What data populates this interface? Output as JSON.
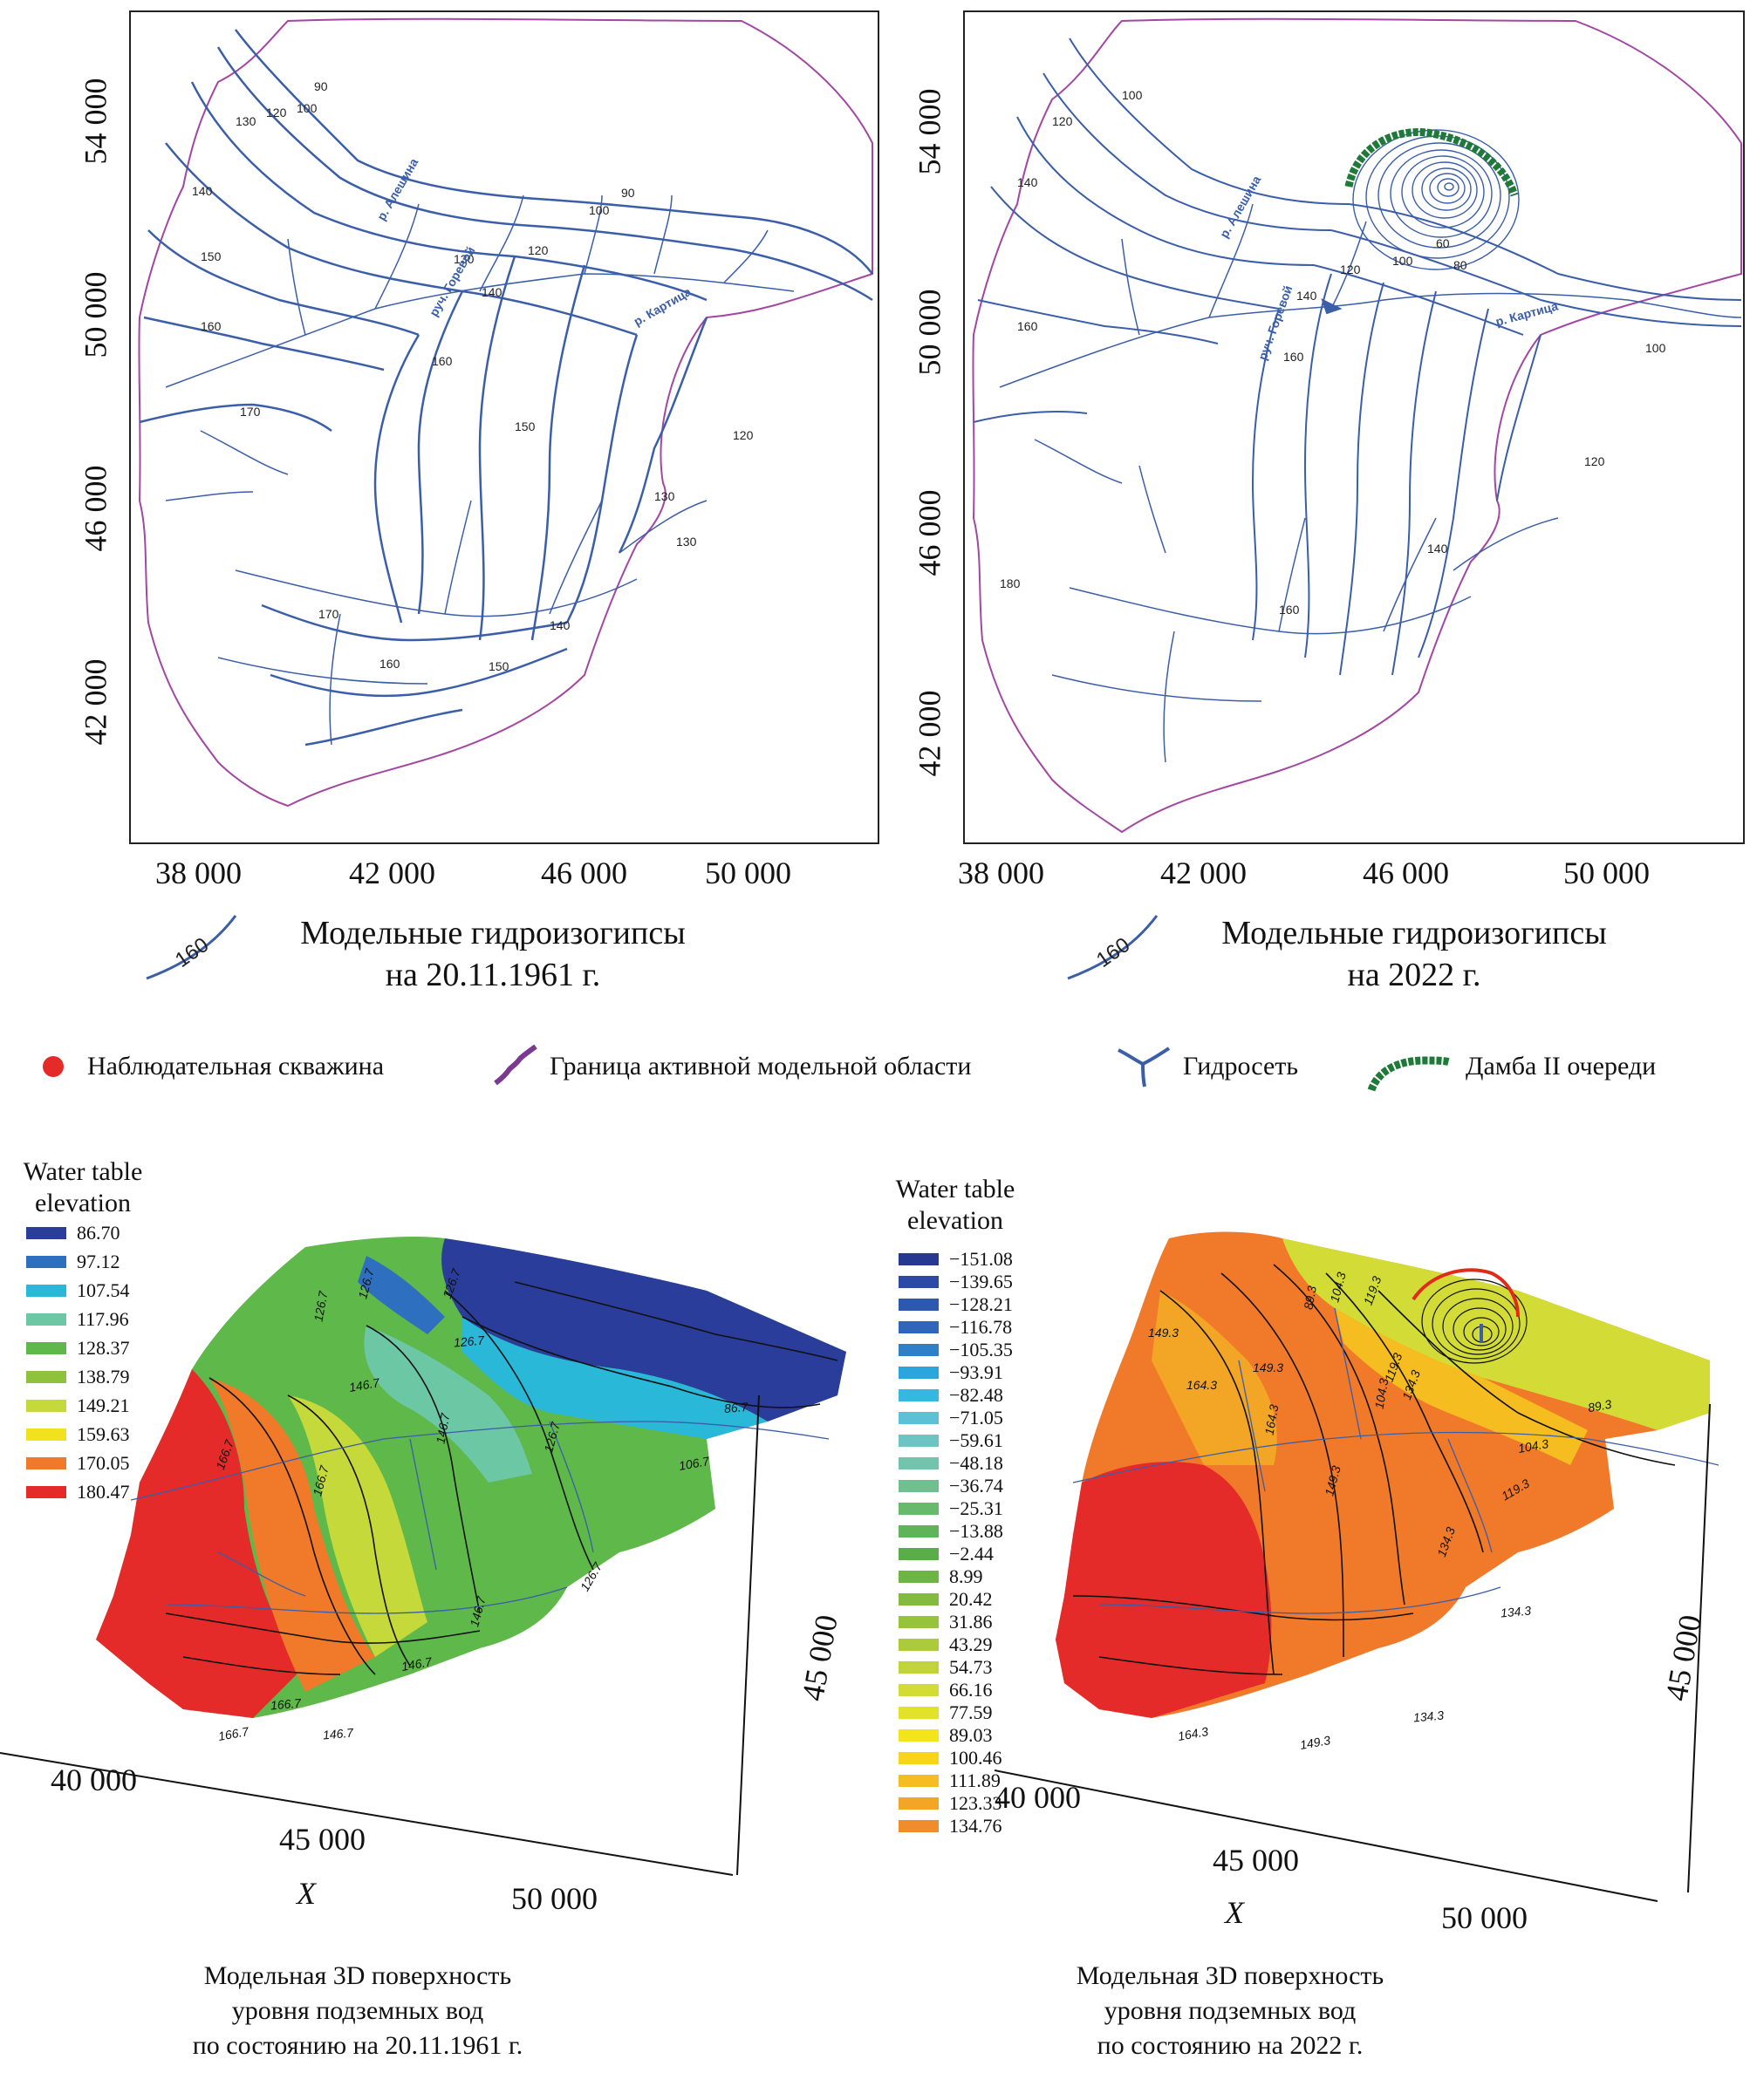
{
  "top_left_map": {
    "y_ticks": [
      "54 000",
      "50 000",
      "46 000",
      "42 000"
    ],
    "x_ticks": [
      "38 000",
      "42 000",
      "46 000",
      "50 000"
    ],
    "contour_labels": [
      "90",
      "100",
      "120",
      "130",
      "140",
      "150",
      "160",
      "170",
      "130",
      "120",
      "100",
      "90",
      "140",
      "150",
      "130",
      "140",
      "150",
      "160",
      "170",
      "160",
      "130",
      "120"
    ],
    "river_labels": [
      "р. Алешина",
      "руч. Горевой",
      "р. Картица"
    ],
    "caption_line1": "Модельные гидроизогипсы",
    "caption_line2": "на 20.11.1961 г.",
    "sample_label": "160"
  },
  "top_right_map": {
    "y_ticks": [
      "54 000",
      "50 000",
      "46 000",
      "42 000"
    ],
    "x_ticks": [
      "38 000",
      "42 000",
      "46 000",
      "50 000"
    ],
    "contour_labels": [
      "100",
      "120",
      "140",
      "160",
      "120",
      "100",
      "80",
      "60",
      "140",
      "160",
      "180",
      "160",
      "140",
      "120",
      "100"
    ],
    "river_labels": [
      "р. Алешина",
      "руч. Горевой",
      "р. Картица"
    ],
    "caption_line1": "Модельные гидроизогипсы",
    "caption_line2": "на 2022 г.",
    "sample_label": "160"
  },
  "legend": {
    "well": "Наблюдательная скважина",
    "boundary": "Граница активной модельной области",
    "network": "Гидросеть",
    "dam": "Дамба II очереди"
  },
  "left_3d": {
    "scale_title_line1": "Water table",
    "scale_title_line2": "elevation",
    "scale": [
      {
        "value": "86.70",
        "color": "#2a3d9a"
      },
      {
        "value": "97.12",
        "color": "#2f6fc0"
      },
      {
        "value": "107.54",
        "color": "#2ab8d8"
      },
      {
        "value": "117.96",
        "color": "#6cc7a4"
      },
      {
        "value": "128.37",
        "color": "#5fb84a"
      },
      {
        "value": "138.79",
        "color": "#8fc23c"
      },
      {
        "value": "149.21",
        "color": "#c6d93a"
      },
      {
        "value": "159.63",
        "color": "#f2e21e"
      },
      {
        "value": "170.05",
        "color": "#f07a2a"
      },
      {
        "value": "180.47",
        "color": "#e52a2a"
      }
    ],
    "contour_labels": [
      "126.7",
      "126.7",
      "126.7",
      "146.7",
      "126.7",
      "146.7",
      "166.7",
      "166.7",
      "146.7",
      "126.7",
      "106.7",
      "86.7",
      "166.7",
      "146.7",
      "126.7",
      "166.7",
      "146.7"
    ],
    "axis_ticks": [
      "40 000",
      "45 000",
      "50 000"
    ],
    "side_tick": "45 000",
    "axis_label": "X",
    "caption_line1": "Модельная 3D поверхность",
    "caption_line2": "уровня подземных вод",
    "caption_line3": "по состоянию на 20.11.1961 г."
  },
  "right_3d": {
    "scale_title_line1": "Water table",
    "scale_title_line2": "elevation",
    "scale": [
      {
        "value": "−151.08",
        "color": "#26388f"
      },
      {
        "value": "−139.65",
        "color": "#2a4aa5"
      },
      {
        "value": "−128.21",
        "color": "#2d58b0"
      },
      {
        "value": "−116.78",
        "color": "#2f66bb"
      },
      {
        "value": "−105.35",
        "color": "#3080c8"
      },
      {
        "value": "−93.91",
        "color": "#2aa6dc"
      },
      {
        "value": "−82.48",
        "color": "#35b8e0"
      },
      {
        "value": "−71.05",
        "color": "#5cc0d6"
      },
      {
        "value": "−59.61",
        "color": "#6dc4c2"
      },
      {
        "value": "−48.18",
        "color": "#74c4ad"
      },
      {
        "value": "−36.74",
        "color": "#6fbf8f"
      },
      {
        "value": "−25.31",
        "color": "#67b96c"
      },
      {
        "value": "−13.88",
        "color": "#5fb45a"
      },
      {
        "value": "−2.44",
        "color": "#5aae4a"
      },
      {
        "value": "8.99",
        "color": "#6cb443"
      },
      {
        "value": "20.42",
        "color": "#82bb3f"
      },
      {
        "value": "31.86",
        "color": "#97c33c"
      },
      {
        "value": "43.29",
        "color": "#abcb3a"
      },
      {
        "value": "54.73",
        "color": "#c0d43a"
      },
      {
        "value": "66.16",
        "color": "#d3dc36"
      },
      {
        "value": "77.59",
        "color": "#e3e22a"
      },
      {
        "value": "89.03",
        "color": "#f4e41c"
      },
      {
        "value": "100.46",
        "color": "#f8d51a"
      },
      {
        "value": "111.89",
        "color": "#f6bd20"
      },
      {
        "value": "123.33",
        "color": "#f3a525"
      },
      {
        "value": "134.76",
        "color": "#f08c2a"
      }
    ],
    "contour_labels": [
      "89.3",
      "104.3",
      "119.3",
      "134.3",
      "149.3",
      "164.3",
      "149.3",
      "104.3",
      "119.3",
      "164.3",
      "149.3",
      "134.3",
      "89.3",
      "104.3",
      "119.3",
      "134.3",
      "164.3",
      "149.3",
      "134.3"
    ],
    "axis_ticks": [
      "40 000",
      "45 000",
      "50 000"
    ],
    "side_tick": "45 000",
    "axis_label": "X",
    "caption_line1": "Модельная 3D поверхность",
    "caption_line2": "уровня подземных вод",
    "caption_line3": "по состоянию на 2022 г."
  },
  "colors": {
    "boundary": "#a347a3",
    "river": "#3b5ea8",
    "dam": "#1f7a3a",
    "well": "#e52a2a"
  }
}
